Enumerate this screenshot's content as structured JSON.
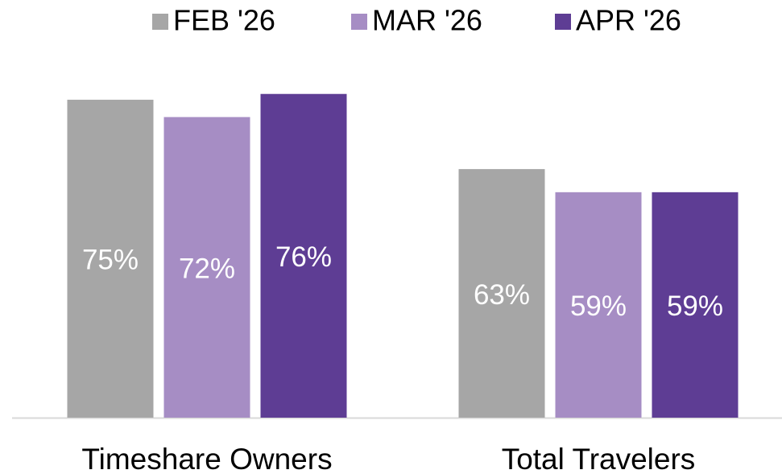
{
  "chart_data": {
    "type": "bar",
    "categories": [
      "Timeshare Owners",
      "Total Travelers"
    ],
    "series": [
      {
        "name": "FEB '26",
        "color": "#a6a6a6",
        "values": [
          75,
          63
        ],
        "value_labels": [
          "75%",
          "63%"
        ]
      },
      {
        "name": "MAR '26",
        "color": "#a68dc4",
        "values": [
          72,
          59
        ],
        "value_labels": [
          "72%",
          "59%"
        ]
      },
      {
        "name": "APR '26",
        "color": "#5e3d94",
        "values": [
          76,
          59
        ],
        "value_labels": [
          "76%",
          "59%"
        ]
      }
    ],
    "ylim": [
      20,
      80
    ],
    "legend": "top"
  }
}
